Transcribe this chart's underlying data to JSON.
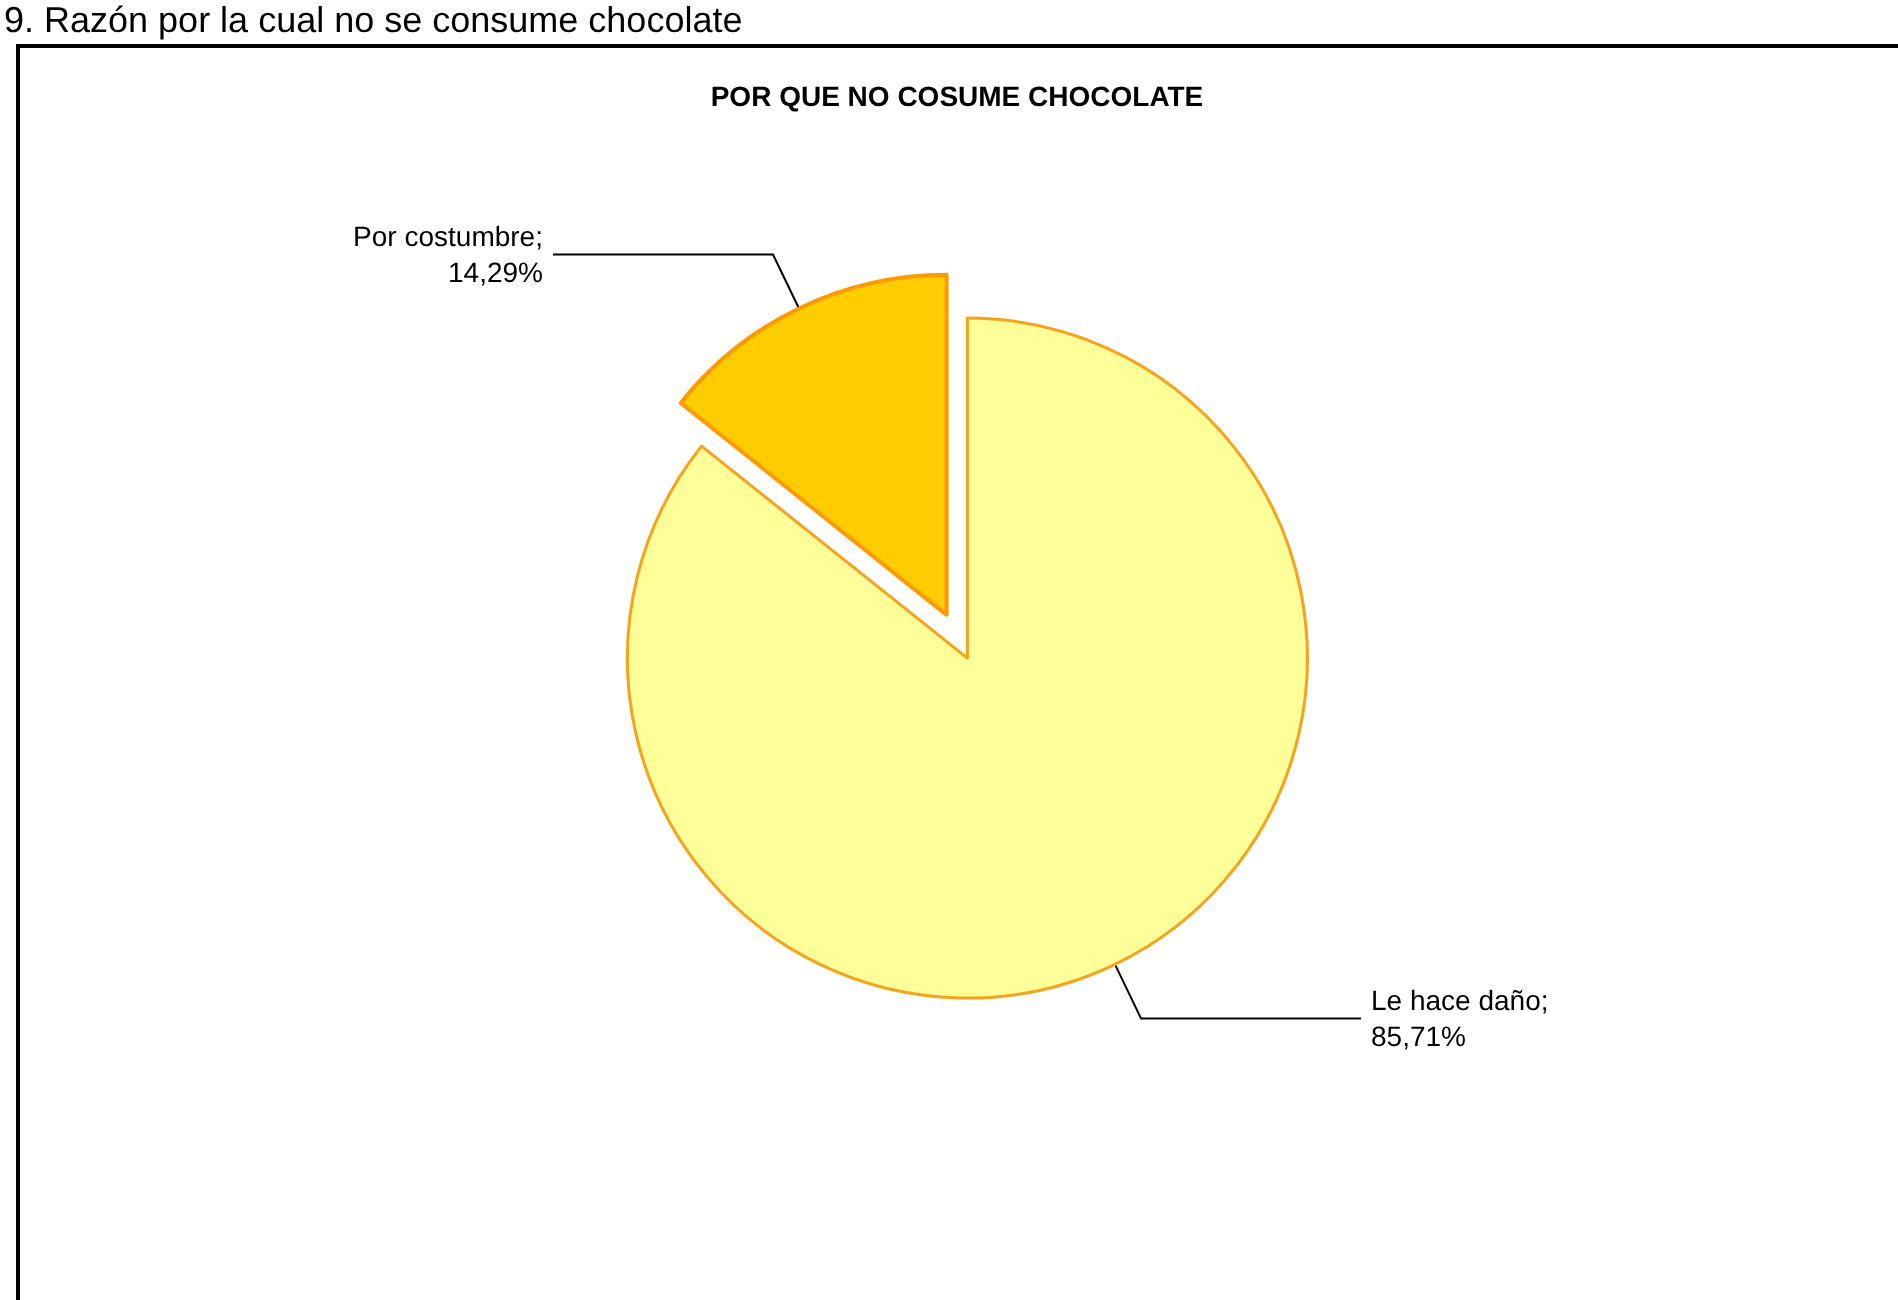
{
  "chart_data": {
    "type": "pie",
    "title": "POR QUE NO COSUME CHOCOLATE",
    "annotations": [
      "9. Razón por la cual no se consume chocolate"
    ],
    "categories": [
      "Le hace daño",
      "Por costumbre"
    ],
    "values": [
      85.71,
      14.29
    ],
    "value_labels": [
      ";\n85,71%",
      ";\n14,29%"
    ],
    "colors": [
      "#ffff99",
      "#ffcc00"
    ],
    "legend": false
  }
}
